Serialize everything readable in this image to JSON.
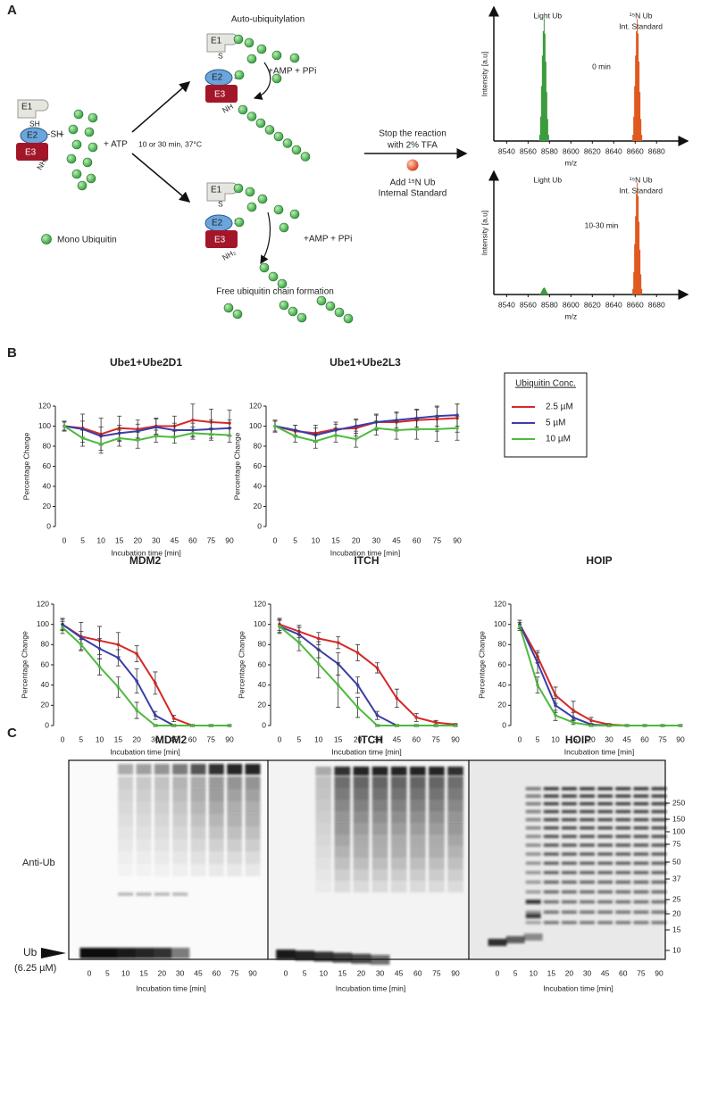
{
  "panel_labels": [
    "A",
    "B",
    "C"
  ],
  "schematic": {
    "e1": "E1",
    "sh": "SH",
    "e2": "E2",
    "e2_sh": "-SH",
    "e3": "E3",
    "nh2": "NH₂",
    "plus": "+",
    "atp": "+ ATP",
    "condition": "10 or 30 min, 37°C",
    "mono_ub": "Mono Ubiquitin",
    "auto_title": "Auto-ubiquitylation",
    "auto_e1": "E1",
    "auto_s1": "S",
    "auto_e2": "E2",
    "auto_s2": "S",
    "auto_e3": "E3",
    "auto_nh": "NH",
    "auto_products": "+AMP + PPi",
    "free_e1": "E1",
    "free_s1": "S",
    "free_e2": "E2",
    "free_s2": "S",
    "free_e3": "E3",
    "free_nh": "NH₂",
    "free_products": "+AMP + PPi",
    "free_title": "Free ubiquitin chain formation",
    "stop_1": "Stop the reaction",
    "stop_2": "with 2% TFA",
    "add_1": "Add ¹⁵N Ub",
    "add_2": "Internal Standard"
  },
  "chart_data": [
    {
      "type": "spectrum",
      "xlabel": "m/z",
      "ylabel": "Intensity [a.u]",
      "annotation": "0 min",
      "xlim": [
        8528,
        8709
      ],
      "xticks": [
        8540,
        8560,
        8580,
        8600,
        8620,
        8640,
        8660,
        8680
      ],
      "ylim": [
        0,
        100
      ],
      "peaks": [
        {
          "labels": [
            "Light Ub"
          ],
          "x": 8575,
          "height": 95,
          "color": "#3c9b3c"
        },
        {
          "labels": [
            "¹⁵N Ub",
            "Int. Standard"
          ],
          "x": 8662,
          "height": 95,
          "color": "#e0591f"
        }
      ]
    },
    {
      "type": "spectrum",
      "xlabel": "m/z",
      "ylabel": "Intensity [a.u]",
      "annotation": "10-30 min",
      "xlim": [
        8528,
        8709
      ],
      "xticks": [
        8540,
        8560,
        8580,
        8600,
        8620,
        8640,
        8660,
        8680
      ],
      "ylim": [
        0,
        100
      ],
      "peaks": [
        {
          "labels": [
            "Light Ub"
          ],
          "x": 8575,
          "height": 6,
          "color": "#3c9b3c"
        },
        {
          "labels": [
            "¹⁵N Ub",
            "Int. Standard"
          ],
          "x": 8662,
          "height": 95,
          "color": "#e0591f"
        }
      ]
    },
    {
      "type": "line",
      "title": "Ube1+Ube2D1",
      "xlabel": "Incubation time [min]",
      "ylabel": "Percentage Change",
      "categories": [
        "0",
        "5",
        "10",
        "15",
        "20",
        "30",
        "45",
        "60",
        "75",
        "90"
      ],
      "ylim": [
        0,
        120
      ],
      "yticks": [
        0,
        20,
        40,
        60,
        80,
        100,
        120
      ],
      "legend_title": "Ubiquitin Conc.",
      "series": [
        {
          "name": "2.5 µM",
          "color": "#d62828",
          "values": [
            100,
            98,
            92,
            98,
            97,
            100,
            100,
            106,
            104,
            103
          ],
          "errors": [
            5,
            14,
            16,
            12,
            9,
            8,
            10,
            16,
            13,
            13
          ]
        },
        {
          "name": "5 µM",
          "color": "#3a3ea8",
          "values": [
            100,
            97,
            90,
            93,
            95,
            99,
            96,
            96,
            97,
            98
          ],
          "errors": [
            4,
            8,
            9,
            8,
            7,
            8,
            7,
            7,
            9,
            8
          ]
        },
        {
          "name": "10 µM",
          "color": "#4cbb3c",
          "values": [
            100,
            88,
            82,
            88,
            86,
            90,
            89,
            93,
            92,
            91
          ],
          "errors": [
            5,
            8,
            9,
            8,
            8,
            6,
            6,
            6,
            6,
            7
          ]
        }
      ]
    },
    {
      "type": "line",
      "title": "Ube1+Ube2L3",
      "xlabel": "Incubation time [min]",
      "ylabel": "Percentage Change",
      "categories": [
        "0",
        "5",
        "10",
        "15",
        "20",
        "30",
        "45",
        "60",
        "75",
        "90"
      ],
      "ylim": [
        0,
        120
      ],
      "yticks": [
        0,
        20,
        40,
        60,
        80,
        100,
        120
      ],
      "series": [
        {
          "color": "#d62828",
          "values": [
            100,
            95,
            93,
            97,
            98,
            104,
            104,
            106,
            107,
            108
          ],
          "errors": [
            6,
            6,
            8,
            7,
            8,
            7,
            9,
            10,
            12,
            14
          ]
        },
        {
          "color": "#3a3ea8",
          "values": [
            100,
            96,
            91,
            96,
            100,
            104,
            106,
            108,
            110,
            111
          ],
          "errors": [
            5,
            5,
            7,
            6,
            7,
            8,
            8,
            9,
            10,
            11
          ]
        },
        {
          "color": "#4cbb3c",
          "values": [
            100,
            90,
            85,
            91,
            87,
            98,
            96,
            97,
            97,
            98
          ],
          "errors": [
            5,
            6,
            7,
            7,
            8,
            7,
            9,
            10,
            12,
            12
          ]
        }
      ]
    },
    {
      "type": "line",
      "title": "MDM2",
      "xlabel": "Incubation time [min]",
      "ylabel": "Percentage Change",
      "categories": [
        "0",
        "5",
        "10",
        "15",
        "20",
        "30",
        "45",
        "60",
        "75",
        "90"
      ],
      "ylim": [
        0,
        120
      ],
      "yticks": [
        0,
        20,
        40,
        60,
        80,
        100,
        120
      ],
      "series": [
        {
          "color": "#d62828",
          "values": [
            100,
            88,
            84,
            80,
            71,
            42,
            7,
            0,
            0,
            0
          ],
          "errors": [
            5,
            14,
            14,
            12,
            8,
            11,
            3,
            1,
            1,
            1
          ]
        },
        {
          "color": "#3a3ea8",
          "values": [
            100,
            87,
            76,
            67,
            44,
            10,
            0,
            0,
            0,
            0
          ],
          "errors": [
            6,
            6,
            10,
            8,
            12,
            4,
            1,
            1,
            1,
            1
          ]
        },
        {
          "color": "#4cbb3c",
          "values": [
            97,
            80,
            58,
            38,
            15,
            0,
            0,
            0,
            0,
            0
          ],
          "errors": [
            6,
            5,
            8,
            10,
            8,
            1,
            1,
            1,
            1,
            1
          ]
        }
      ]
    },
    {
      "type": "line",
      "title": "ITCH",
      "xlabel": "Incubation time [min]",
      "ylabel": "Percentage Change",
      "categories": [
        "0",
        "5",
        "10",
        "15",
        "20",
        "30",
        "45",
        "60",
        "75",
        "90"
      ],
      "ylim": [
        0,
        120
      ],
      "yticks": [
        0,
        20,
        40,
        60,
        80,
        100,
        120
      ],
      "series": [
        {
          "color": "#d62828",
          "values": [
            100,
            93,
            86,
            82,
            72,
            57,
            27,
            8,
            3,
            1
          ],
          "errors": [
            6,
            6,
            6,
            6,
            8,
            5,
            9,
            4,
            2,
            1
          ]
        },
        {
          "color": "#3a3ea8",
          "values": [
            98,
            90,
            75,
            61,
            40,
            10,
            0,
            0,
            0,
            0
          ],
          "errors": [
            6,
            7,
            8,
            11,
            8,
            4,
            1,
            1,
            1,
            1
          ]
        },
        {
          "color": "#4cbb3c",
          "values": [
            98,
            82,
            61,
            40,
            18,
            0,
            0,
            0,
            0,
            0
          ],
          "errors": [
            7,
            8,
            14,
            22,
            10,
            1,
            1,
            1,
            1,
            1
          ]
        }
      ]
    },
    {
      "type": "line",
      "title": "HOIP",
      "xlabel": "Incubation time [min]",
      "ylabel": "Percentage Change",
      "categories": [
        "0",
        "5",
        "10",
        "15",
        "20",
        "30",
        "45",
        "60",
        "75",
        "90"
      ],
      "ylim": [
        0,
        120
      ],
      "yticks": [
        0,
        20,
        40,
        60,
        80,
        100,
        120
      ],
      "series": [
        {
          "color": "#d62828",
          "values": [
            100,
            68,
            30,
            15,
            5,
            1,
            0,
            0,
            0,
            0
          ],
          "errors": [
            4,
            6,
            8,
            9,
            3,
            1,
            1,
            1,
            1,
            1
          ]
        },
        {
          "color": "#3a3ea8",
          "values": [
            100,
            62,
            20,
            8,
            1,
            0,
            0,
            0,
            0,
            0
          ],
          "errors": [
            4,
            10,
            7,
            5,
            1,
            1,
            1,
            1,
            1,
            1
          ]
        },
        {
          "color": "#4cbb3c",
          "values": [
            98,
            40,
            10,
            3,
            0,
            0,
            0,
            0,
            0,
            0
          ],
          "errors": [
            4,
            8,
            5,
            2,
            1,
            1,
            1,
            1,
            1,
            1
          ]
        }
      ]
    }
  ],
  "gel": {
    "antibody": "Anti-Ub",
    "ub_label": "Ub",
    "ub_conc": "(6.25 µM)",
    "markers": [
      "250",
      "150",
      "100",
      "75",
      "50",
      "37",
      "25",
      "20",
      "15",
      "10"
    ],
    "panels": [
      {
        "title": "MDM2",
        "lanes": [
          "0",
          "5",
          "10",
          "15",
          "20",
          "30",
          "45",
          "60",
          "75",
          "90"
        ],
        "xlabel": "Incubation time [min]"
      },
      {
        "title": "ITCH",
        "lanes": [
          "0",
          "5",
          "10",
          "15",
          "20",
          "30",
          "45",
          "60",
          "75",
          "90"
        ],
        "xlabel": "Incubation time [min]"
      },
      {
        "title": "HOIP",
        "lanes": [
          "0",
          "5",
          "10",
          "15",
          "20",
          "30",
          "45",
          "60",
          "75",
          "90"
        ],
        "xlabel": "Incubation time [min]"
      }
    ]
  }
}
